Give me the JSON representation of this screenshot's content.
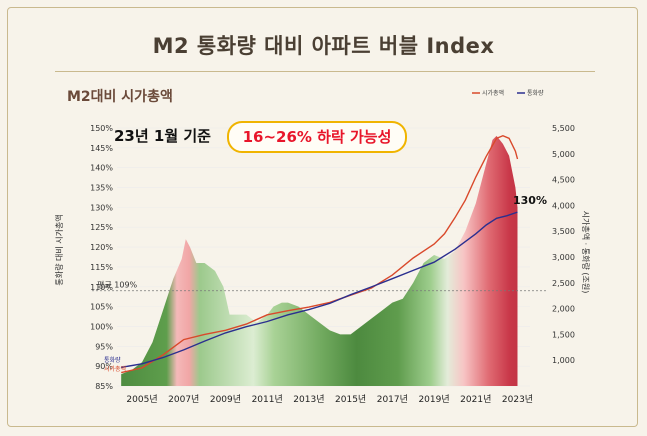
{
  "page": {
    "title": "M2 통화량 대비 아파트 버블 Index",
    "subtitle": "M2대비 시가총액"
  },
  "colors": {
    "background": "#f7f3ea",
    "border": "#c9b98e",
    "market_cap_line": "#d9492b",
    "m2_line": "#2b2f8f",
    "green": "#5da04c",
    "red": "#c73a4c",
    "callout_red": "#e8162a",
    "callout_border": "#f0b400"
  },
  "chart_data": {
    "type": "area",
    "title": "M2대비 시가총액",
    "callout": {
      "prefix": "23년 1월 기준",
      "highlight": "16~26% 하락 가능성"
    },
    "legend": [
      "시가총액",
      "통화량"
    ],
    "ylabel_left": "통화량 대비 시가총액",
    "ylabel_right": "시가총액 · 통화량 (조원)",
    "left_axis": {
      "min": 85,
      "max": 150,
      "ticks": [
        85,
        90,
        95,
        100,
        105,
        110,
        115,
        120,
        125,
        130,
        135,
        140,
        145,
        150
      ],
      "tick_labels": [
        "85%",
        "90%",
        "95%",
        "100%",
        "105%",
        "110%",
        "115%",
        "120%",
        "125%",
        "130%",
        "135%",
        "140%",
        "145%",
        "150%"
      ]
    },
    "right_axis": {
      "min": 500,
      "max": 5500,
      "ticks": [
        1000,
        1500,
        2000,
        2500,
        3000,
        3500,
        4000,
        4500,
        5000,
        5500
      ],
      "tick_labels": [
        "1,000",
        "1,500",
        "2,000",
        "2,500",
        "3,000",
        "3,500",
        "4,000",
        "4,500",
        "5,000",
        "5,500"
      ]
    },
    "x_axis": {
      "min": 2003.8,
      "max": 2023.6,
      "ticks": [
        2005,
        2007,
        2009,
        2011,
        2013,
        2015,
        2017,
        2019,
        2021,
        2023
      ],
      "tick_labels": [
        "2005년",
        "2007년",
        "2009년",
        "2011년",
        "2013년",
        "2015년",
        "2017년",
        "2019년",
        "2021년",
        "2023년"
      ]
    },
    "average": {
      "value": 109,
      "label": "평균 109%"
    },
    "annotation": {
      "label": "130%",
      "x": 2023.0,
      "value": 130
    },
    "start_labels": [
      "통화량",
      "시가총액"
    ],
    "ratio_series": {
      "name": "M2 대비 시가총액 비율 (%)",
      "x": [
        2004.0,
        2004.5,
        2005.0,
        2005.5,
        2006.0,
        2006.5,
        2006.9,
        2007.1,
        2007.3,
        2007.6,
        2008.0,
        2008.5,
        2008.9,
        2009.2,
        2009.6,
        2010.0,
        2010.5,
        2011.0,
        2011.3,
        2011.7,
        2012.0,
        2012.5,
        2013.0,
        2013.5,
        2014.0,
        2014.5,
        2015.0,
        2015.5,
        2016.0,
        2016.5,
        2017.0,
        2017.5,
        2018.0,
        2018.5,
        2019.0,
        2019.5,
        2020.0,
        2020.5,
        2021.0,
        2021.5,
        2021.8,
        2022.0,
        2022.3,
        2022.6,
        2022.9,
        2023.0
      ],
      "values": [
        88,
        89,
        91,
        96,
        104,
        112,
        117,
        122,
        120,
        116,
        116,
        114,
        110,
        103,
        103,
        103,
        101,
        103,
        105,
        106,
        106,
        105,
        103,
        101,
        99,
        98,
        98,
        100,
        102,
        104,
        106,
        107,
        111,
        116,
        118,
        117,
        119,
        124,
        131,
        141,
        147,
        148,
        146,
        143,
        135,
        130
      ]
    },
    "market_cap_series": {
      "name": "시가총액",
      "x": [
        2004.0,
        2005.0,
        2006.0,
        2007.0,
        2008.0,
        2009.0,
        2010.0,
        2011.0,
        2012.0,
        2013.0,
        2014.0,
        2015.0,
        2016.0,
        2017.0,
        2018.0,
        2019.0,
        2019.5,
        2020.0,
        2020.5,
        2021.0,
        2021.5,
        2022.0,
        2022.3,
        2022.6,
        2022.9,
        2023.0
      ],
      "values": [
        760,
        850,
        1100,
        1400,
        1500,
        1580,
        1700,
        1880,
        1960,
        2030,
        2120,
        2260,
        2400,
        2650,
        2980,
        3250,
        3450,
        3760,
        4100,
        4550,
        4950,
        5300,
        5350,
        5300,
        5050,
        4900
      ]
    },
    "m2_series": {
      "name": "통화량",
      "x": [
        2004.0,
        2005.0,
        2006.0,
        2007.0,
        2008.0,
        2009.0,
        2010.0,
        2011.0,
        2012.0,
        2013.0,
        2014.0,
        2015.0,
        2016.0,
        2017.0,
        2018.0,
        2019.0,
        2020.0,
        2021.0,
        2021.5,
        2022.0,
        2022.5,
        2023.0
      ],
      "values": [
        860,
        930,
        1050,
        1200,
        1370,
        1530,
        1650,
        1750,
        1880,
        1980,
        2100,
        2270,
        2420,
        2580,
        2740,
        2900,
        3150,
        3450,
        3620,
        3750,
        3800,
        3870
      ]
    }
  }
}
